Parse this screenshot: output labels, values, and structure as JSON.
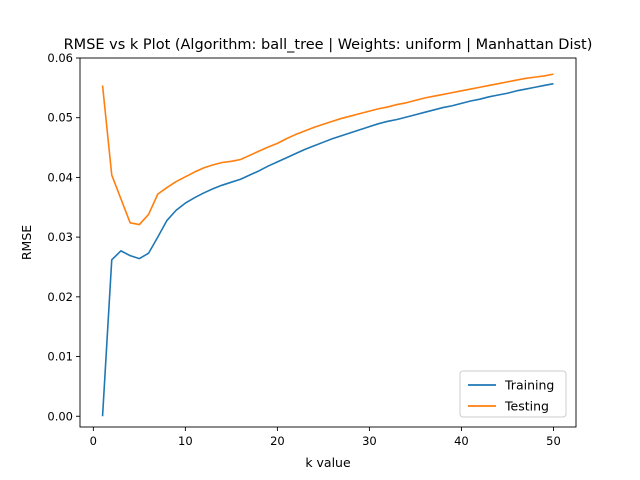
{
  "chart_data": {
    "type": "line",
    "title": "RMSE vs k Plot (Algorithm: ball_tree | Weights: uniform | Manhattan Dist)",
    "xlabel": "k value",
    "ylabel": "RMSE",
    "xlim": [
      -1.45,
      52.45
    ],
    "ylim": [
      -0.0018,
      0.06
    ],
    "xticks": [
      0,
      10,
      20,
      30,
      40,
      50
    ],
    "yticks": [
      0.0,
      0.01,
      0.02,
      0.03,
      0.04,
      0.05,
      0.06
    ],
    "ytick_labels": [
      "0.00",
      "0.01",
      "0.02",
      "0.03",
      "0.04",
      "0.05",
      "0.06"
    ],
    "grid": false,
    "legend_position": "lower-right",
    "x": [
      1,
      2,
      3,
      4,
      5,
      6,
      7,
      8,
      9,
      10,
      11,
      12,
      13,
      14,
      15,
      16,
      17,
      18,
      19,
      20,
      21,
      22,
      23,
      24,
      25,
      26,
      27,
      28,
      29,
      30,
      31,
      32,
      33,
      34,
      35,
      36,
      37,
      38,
      39,
      40,
      41,
      42,
      43,
      44,
      45,
      46,
      47,
      48,
      49,
      50
    ],
    "series": [
      {
        "name": "Training",
        "color": "#1f77b4",
        "values": [
          0.0,
          0.0262,
          0.0277,
          0.0269,
          0.0264,
          0.0273,
          0.03,
          0.0328,
          0.0345,
          0.0357,
          0.0366,
          0.0374,
          0.0381,
          0.0387,
          0.0392,
          0.0397,
          0.0404,
          0.0411,
          0.0419,
          0.0426,
          0.0433,
          0.044,
          0.0447,
          0.0453,
          0.0459,
          0.0465,
          0.047,
          0.0475,
          0.048,
          0.0485,
          0.049,
          0.0494,
          0.0497,
          0.0501,
          0.0505,
          0.0509,
          0.0513,
          0.0517,
          0.052,
          0.0524,
          0.0528,
          0.0531,
          0.0535,
          0.0538,
          0.0541,
          0.0545,
          0.0548,
          0.0551,
          0.0554,
          0.0557
        ]
      },
      {
        "name": "Testing",
        "color": "#ff7f0e",
        "values": [
          0.0554,
          0.0404,
          0.0364,
          0.0324,
          0.0321,
          0.0338,
          0.0372,
          0.0383,
          0.0393,
          0.0401,
          0.0409,
          0.0416,
          0.0421,
          0.0425,
          0.0427,
          0.043,
          0.0437,
          0.0444,
          0.0451,
          0.0457,
          0.0465,
          0.0472,
          0.0478,
          0.0484,
          0.0489,
          0.0494,
          0.0499,
          0.0503,
          0.0507,
          0.0511,
          0.0515,
          0.0518,
          0.0522,
          0.0525,
          0.0529,
          0.0533,
          0.0536,
          0.0539,
          0.0542,
          0.0545,
          0.0548,
          0.0551,
          0.0554,
          0.0557,
          0.056,
          0.0563,
          0.0566,
          0.0568,
          0.057,
          0.0573
        ]
      }
    ]
  }
}
